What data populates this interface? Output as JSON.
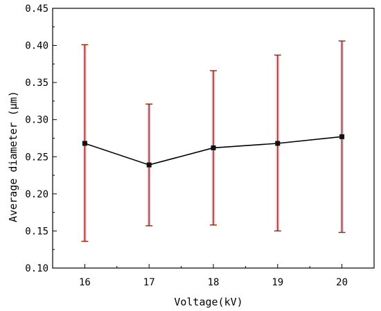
{
  "chart_data": {
    "type": "line",
    "title": "",
    "xlabel": "Voltage(kV)",
    "ylabel": "Average diameter (μm)",
    "x": [
      16,
      17,
      18,
      19,
      20
    ],
    "xlim": [
      15.5,
      20.5
    ],
    "ylim": [
      0.1,
      0.45
    ],
    "xticks": [
      "16",
      "17",
      "18",
      "19",
      "20"
    ],
    "yticks": [
      "0.10",
      "0.15",
      "0.20",
      "0.25",
      "0.30",
      "0.35",
      "0.40",
      "0.45"
    ],
    "series": [
      {
        "values": [
          0.268,
          0.239,
          0.262,
          0.268,
          0.277
        ],
        "error_low": [
          0.136,
          0.157,
          0.158,
          0.15,
          0.148
        ],
        "error_high": [
          0.401,
          0.321,
          0.366,
          0.387,
          0.406
        ]
      }
    ],
    "colors": {
      "line": "#000000",
      "marker": "#111111",
      "error_bar": "#8b2a0e",
      "error_glow": "#f3c8da"
    },
    "grid": false,
    "legend": "none"
  }
}
